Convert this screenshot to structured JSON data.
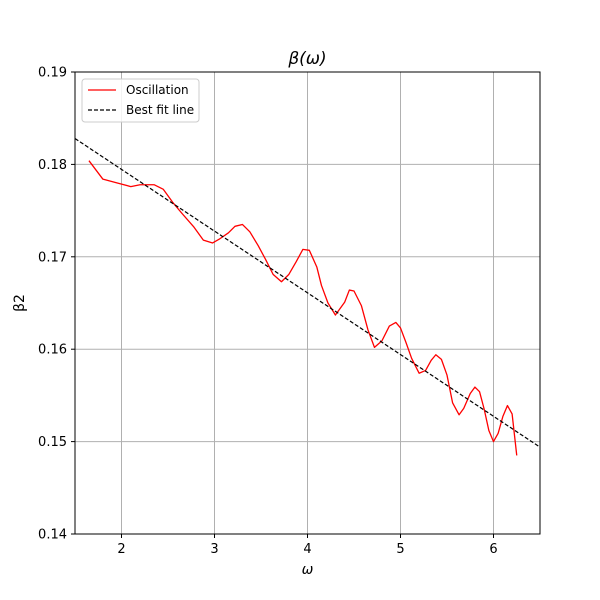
{
  "chart_data": {
    "type": "line",
    "title": "β(ω)",
    "xlabel": "ω",
    "ylabel": "β2",
    "xlim": [
      1.5,
      6.5
    ],
    "ylim": [
      0.14,
      0.19
    ],
    "xticks": [
      2,
      3,
      4,
      5,
      6
    ],
    "yticks": [
      0.14,
      0.15,
      0.16,
      0.17,
      0.18,
      0.19
    ],
    "xtick_labels": [
      "2",
      "3",
      "4",
      "5",
      "6"
    ],
    "ytick_labels": [
      "0.14",
      "0.15",
      "0.16",
      "0.17",
      "0.18",
      "0.19"
    ],
    "grid": true,
    "legend_position": "top-left",
    "series": [
      {
        "name": "Oscillation",
        "color": "#ff0000",
        "style": "solid",
        "x": [
          1.65,
          1.8,
          1.95,
          2.1,
          2.2,
          2.35,
          2.45,
          2.55,
          2.65,
          2.78,
          2.88,
          2.98,
          3.05,
          3.15,
          3.22,
          3.3,
          3.38,
          3.47,
          3.55,
          3.63,
          3.72,
          3.8,
          3.88,
          3.95,
          4.02,
          4.1,
          4.15,
          4.22,
          4.3,
          4.4,
          4.45,
          4.5,
          4.58,
          4.65,
          4.72,
          4.8,
          4.88,
          4.95,
          5.0,
          5.06,
          5.12,
          5.2,
          5.27,
          5.33,
          5.38,
          5.44,
          5.5,
          5.56,
          5.63,
          5.68,
          5.75,
          5.8,
          5.85,
          5.9,
          5.95,
          6.0,
          6.05,
          6.1,
          6.15,
          6.2,
          6.25
        ],
        "y": [
          0.1804,
          0.1784,
          0.178,
          0.1776,
          0.1778,
          0.1778,
          0.1773,
          0.1759,
          0.1747,
          0.1732,
          0.1718,
          0.1715,
          0.1719,
          0.1726,
          0.1733,
          0.1735,
          0.1727,
          0.1712,
          0.1697,
          0.1681,
          0.1673,
          0.1681,
          0.1695,
          0.1708,
          0.1707,
          0.1689,
          0.1669,
          0.165,
          0.1637,
          0.1651,
          0.1664,
          0.1663,
          0.1647,
          0.1621,
          0.1602,
          0.1609,
          0.1625,
          0.1629,
          0.1623,
          0.1607,
          0.159,
          0.1574,
          0.1577,
          0.1588,
          0.1594,
          0.1589,
          0.1572,
          0.1542,
          0.1529,
          0.1536,
          0.1552,
          0.1559,
          0.1554,
          0.1535,
          0.1512,
          0.15,
          0.1509,
          0.1527,
          0.1539,
          0.153,
          0.1485
        ]
      },
      {
        "name": "Best fit line",
        "color": "#000000",
        "style": "dashed",
        "x": [
          1.5,
          6.5
        ],
        "y": [
          0.1828,
          0.1494
        ]
      }
    ]
  }
}
